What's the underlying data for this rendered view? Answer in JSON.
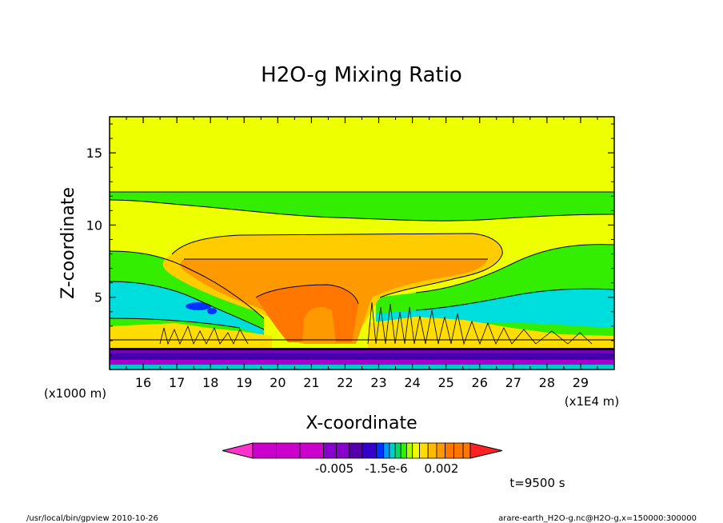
{
  "chart_data": {
    "type": "heatmap",
    "title": "H2O-g Mixing Ratio",
    "xlabel": "X-coordinate",
    "ylabel": "Z-coordinate",
    "x_scale_note": "(x1E4 m)",
    "y_scale_note": "(x1000 m)",
    "x_ticks": [
      "16",
      "17",
      "18",
      "19",
      "20",
      "21",
      "22",
      "23",
      "24",
      "25",
      "26",
      "27",
      "28",
      "29"
    ],
    "x_tick_values": [
      16,
      17,
      18,
      19,
      20,
      21,
      22,
      23,
      24,
      25,
      26,
      27,
      28,
      29
    ],
    "y_ticks": [
      "5",
      "10",
      "15"
    ],
    "y_tick_values": [
      5,
      10,
      15
    ],
    "xlim": [
      15.0,
      30.0
    ],
    "ylim": [
      0.0,
      17.5
    ],
    "colorbar_labels": [
      "-0.005",
      "-1.5e-6",
      "0.002"
    ],
    "colorbar_colors": [
      "#ff33cc",
      "#cc00cc",
      "#cc00cc",
      "#cc00cc",
      "#8800cc",
      "#8800cc",
      "#5500aa",
      "#3300cc",
      "#0033ff",
      "#0099ff",
      "#00cccc",
      "#00dd66",
      "#33ee00",
      "#aaff00",
      "#eeff00",
      "#ffdd00",
      "#ffbb00",
      "#ff9900",
      "#ff7700",
      "#ff7700",
      "#ff7700",
      "#ff2222"
    ],
    "time_label": "t=9500 s",
    "footer_left": "/usr/local/bin/gpview  2010-10-26",
    "footer_right": "arare-earth_H2O-g.nc@H2O-g,x=150000:300000",
    "grid": false,
    "legend": "colorbar-bottom"
  }
}
